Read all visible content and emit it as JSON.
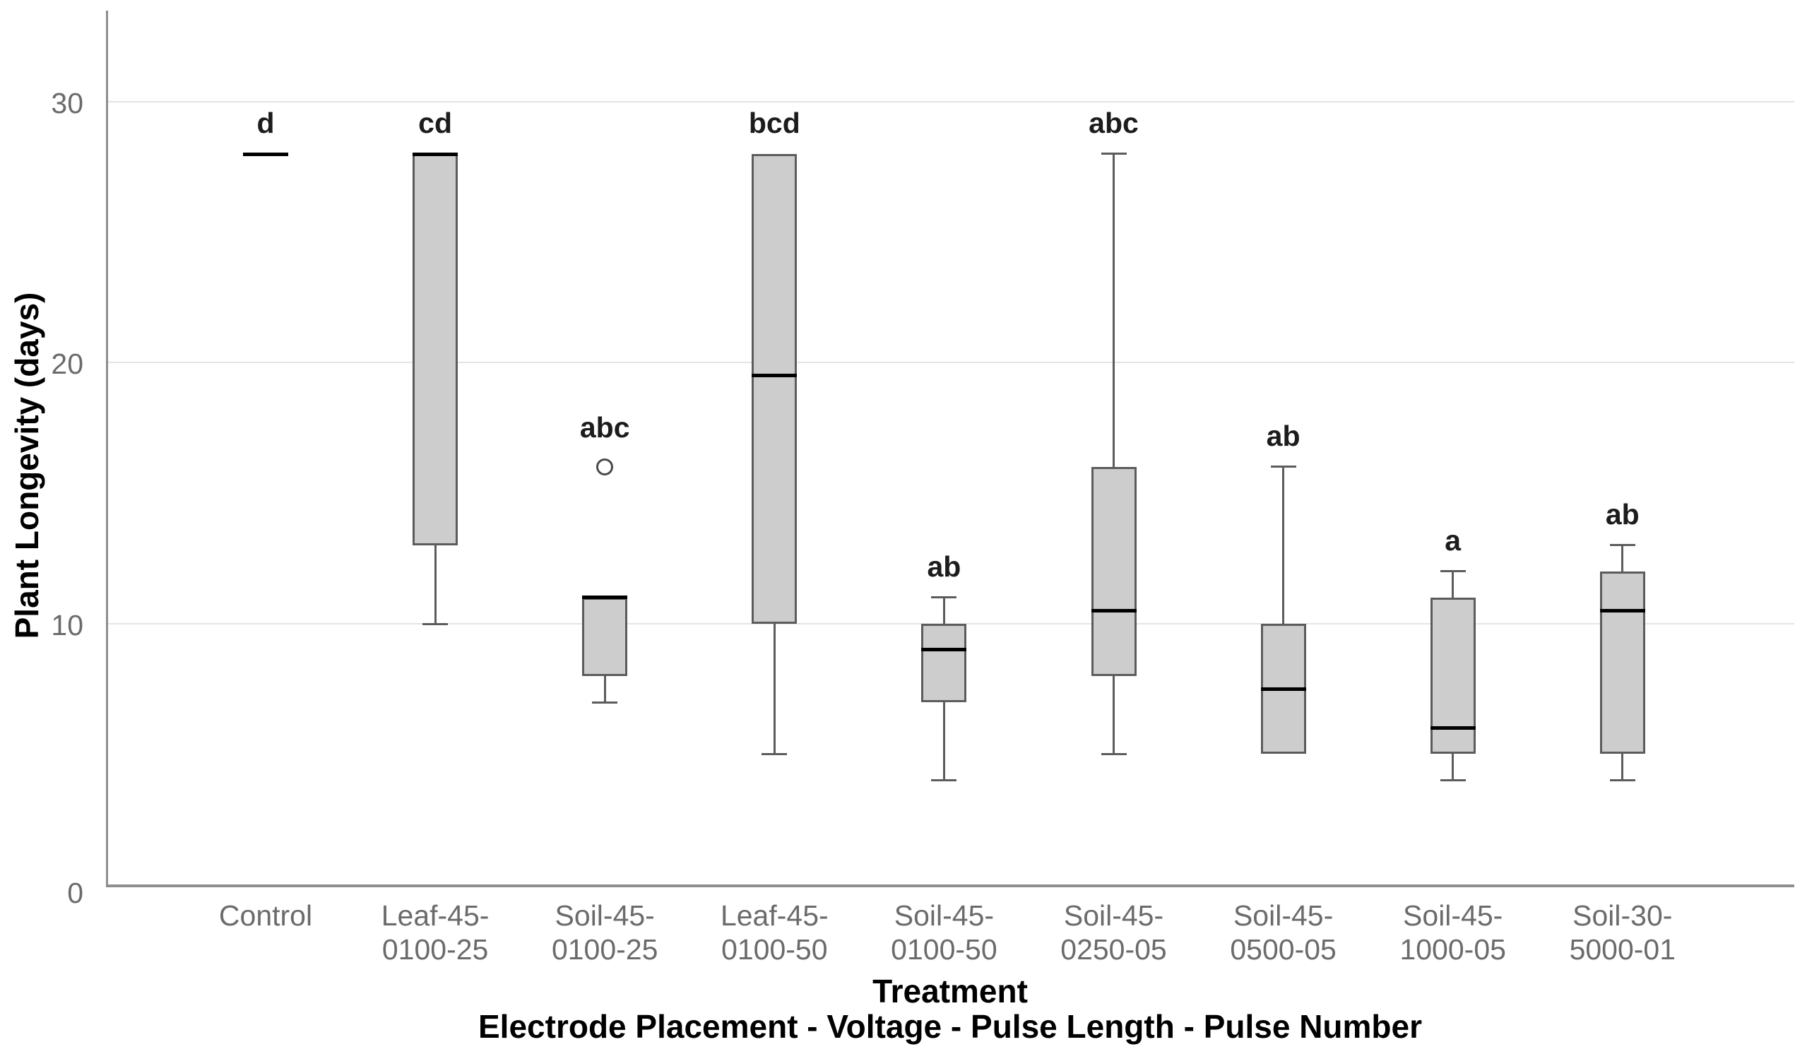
{
  "chart_data": {
    "type": "boxplot",
    "ylabel": "Plant Longevity (days)",
    "xlabel_line1": "Treatment",
    "xlabel_line2": "Electrode Placement - Voltage - Pulse Length - Pulse Number",
    "yticks": [
      "0",
      "10",
      "20",
      "30"
    ],
    "ytick_values": [
      0,
      10,
      20,
      30
    ],
    "grid_values": [
      10,
      20,
      30
    ],
    "ylim": [
      0,
      33.5
    ],
    "legend": "none",
    "grid": "horizontal-only",
    "groups": [
      {
        "label": "Control",
        "label_lines": "Control",
        "letter": "d",
        "median": 28,
        "median_only": true
      },
      {
        "label": "Leaf-45-0100-25",
        "label_lines": "Leaf-45-\n0100-25",
        "letter": "cd",
        "q1": 13,
        "median": 28,
        "q3": 28,
        "whisker_low": 10
      },
      {
        "label": "Soil-45-0100-25",
        "label_lines": "Soil-45-\n0100-25",
        "letter": "abc",
        "q1": 8,
        "median": 11,
        "q3": 11,
        "whisker_low": 7,
        "outliers": [
          16
        ]
      },
      {
        "label": "Leaf-45-0100-50",
        "label_lines": "Leaf-45-\n0100-50",
        "letter": "bcd",
        "q1": 10,
        "median": 19.5,
        "q3": 28,
        "whisker_low": 5
      },
      {
        "label": "Soil-45-0100-50",
        "label_lines": "Soil-45-\n0100-50",
        "letter": "ab",
        "q1": 7,
        "median": 9,
        "q3": 10,
        "whisker_low": 4,
        "whisker_high": 11
      },
      {
        "label": "Soil-45-0250-05",
        "label_lines": "Soil-45-\n0250-05",
        "letter": "abc",
        "q1": 8,
        "median": 10.5,
        "q3": 16,
        "whisker_low": 5,
        "whisker_high": 28
      },
      {
        "label": "Soil-45-0500-05",
        "label_lines": "Soil-45-\n0500-05",
        "letter": "ab",
        "q1": 5,
        "median": 7.5,
        "q3": 10,
        "whisker_high": 16
      },
      {
        "label": "Soil-45-1000-05",
        "label_lines": "Soil-45-\n1000-05",
        "letter": "a",
        "q1": 5,
        "median": 6,
        "q3": 11,
        "whisker_low": 4,
        "whisker_high": 12
      },
      {
        "label": "Soil-30-5000-01",
        "label_lines": "Soil-30-\n5000-01",
        "letter": "ab",
        "q1": 5,
        "median": 10.5,
        "q3": 12,
        "whisker_low": 4,
        "whisker_high": 13
      }
    ],
    "colors": {
      "box_fill": "#cdcdcd",
      "box_border": "#5c5c5c",
      "median": "#000000",
      "whisker": "#5c5c5c",
      "outlier": "#4a4a4a",
      "gridline": "#e4e4e4",
      "axis": "#8e8e8e",
      "tick_label": "#6b6b6b",
      "category_label": "#6b6b6b",
      "letter": "#1c1c1c"
    }
  }
}
